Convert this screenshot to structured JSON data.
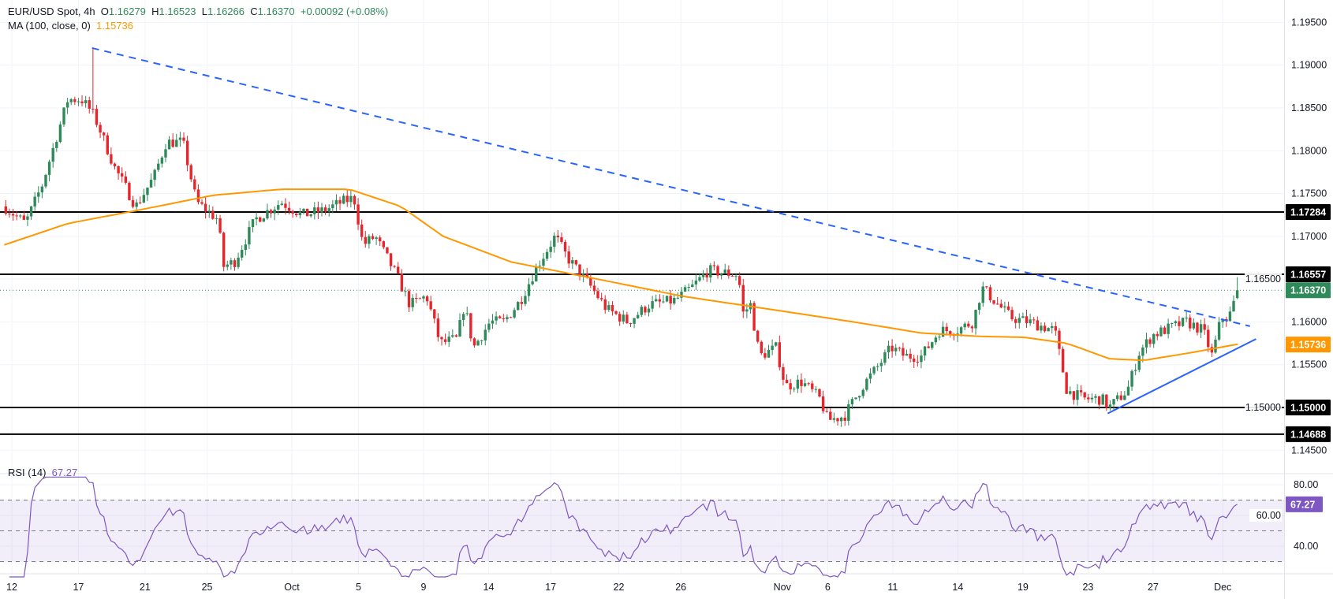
{
  "header": {
    "symbol": "EUR/USD Spot, 4h",
    "open_prefix": "O",
    "open": "1.16279",
    "high_prefix": "H",
    "high": "1.16523",
    "low_prefix": "L",
    "low": "1.16266",
    "close_prefix": "C",
    "close": "1.16370",
    "change": "+0.00092 (+0.08%)",
    "ma_label": "MA (100, close, 0)",
    "ma_value": "1.15736",
    "rsi_label": "RSI (14)",
    "rsi_value": "67.27"
  },
  "colors": {
    "up": "#2f8a5a",
    "down": "#e5262c",
    "ma": "#ff9800",
    "trend": "#2962ff",
    "rsi": "#7e57c2",
    "last": "#2f8a5a"
  },
  "chart_data": {
    "type": "candlestick",
    "title": "EUR/USD Spot, 4h",
    "x_unit": "days since Sep 12",
    "x_ticks": [
      {
        "t": 0,
        "label": "12"
      },
      {
        "t": 4.4,
        "label": "17"
      },
      {
        "t": 8.8,
        "label": "21"
      },
      {
        "t": 12.9,
        "label": "25"
      },
      {
        "t": 18.5,
        "label": "Oct"
      },
      {
        "t": 22.9,
        "label": "5"
      },
      {
        "t": 27.2,
        "label": "9"
      },
      {
        "t": 31.5,
        "label": "14"
      },
      {
        "t": 35.6,
        "label": "17"
      },
      {
        "t": 40.1,
        "label": "22"
      },
      {
        "t": 44.2,
        "label": "26"
      },
      {
        "t": 50.9,
        "label": "Nov"
      },
      {
        "t": 53.9,
        "label": "6"
      },
      {
        "t": 58.2,
        "label": "11"
      },
      {
        "t": 62.5,
        "label": "14"
      },
      {
        "t": 66.8,
        "label": "19"
      },
      {
        "t": 71.1,
        "label": "23"
      },
      {
        "t": 75.4,
        "label": "27"
      },
      {
        "t": 80,
        "label": "Dec"
      }
    ],
    "price_ticks": [
      "1.14500",
      "1.15000",
      "1.15500",
      "1.16000",
      "1.16500",
      "1.17000",
      "1.17500",
      "1.18000",
      "1.18500",
      "1.19000",
      "1.19500"
    ],
    "ylim": [
      1.145,
      1.195
    ],
    "price_path": [
      [
        -0.5,
        1.1735
      ],
      [
        0.9,
        1.1715
      ],
      [
        2.0,
        1.176
      ],
      [
        3.7,
        1.186
      ],
      [
        4.6,
        1.186
      ],
      [
        5.3,
        1.1845
      ],
      [
        5.7,
        1.183
      ],
      [
        6.8,
        1.178
      ],
      [
        8.2,
        1.1735
      ],
      [
        9.4,
        1.177
      ],
      [
        10.2,
        1.181
      ],
      [
        11.3,
        1.181
      ],
      [
        12.2,
        1.174
      ],
      [
        13.6,
        1.172
      ],
      [
        14.0,
        1.1665
      ],
      [
        14.7,
        1.167
      ],
      [
        16.1,
        1.172
      ],
      [
        17.8,
        1.174
      ],
      [
        19.2,
        1.1725
      ],
      [
        20.6,
        1.173
      ],
      [
        21.8,
        1.174
      ],
      [
        22.6,
        1.1745
      ],
      [
        23.2,
        1.169
      ],
      [
        24.0,
        1.17
      ],
      [
        25.4,
        1.1655
      ],
      [
        26.3,
        1.162
      ],
      [
        27.4,
        1.163
      ],
      [
        28.3,
        1.1575
      ],
      [
        29.4,
        1.158
      ],
      [
        29.9,
        1.162
      ],
      [
        30.5,
        1.157
      ],
      [
        31.6,
        1.16
      ],
      [
        32.5,
        1.16
      ],
      [
        33.6,
        1.1625
      ],
      [
        34.7,
        1.1665
      ],
      [
        35.9,
        1.17
      ],
      [
        36.7,
        1.1675
      ],
      [
        38.1,
        1.1645
      ],
      [
        39.3,
        1.1615
      ],
      [
        40.7,
        1.16
      ],
      [
        42.1,
        1.162
      ],
      [
        43.8,
        1.1625
      ],
      [
        44.9,
        1.164
      ],
      [
        46.0,
        1.166
      ],
      [
        48.0,
        1.1655
      ],
      [
        48.3,
        1.161
      ],
      [
        48.8,
        1.162
      ],
      [
        49.4,
        1.156
      ],
      [
        50.5,
        1.157
      ],
      [
        51.1,
        1.1525
      ],
      [
        52.2,
        1.153
      ],
      [
        53.4,
        1.151
      ],
      [
        53.9,
        1.1485
      ],
      [
        55.0,
        1.149
      ],
      [
        56.2,
        1.1525
      ],
      [
        57.3,
        1.155
      ],
      [
        58.1,
        1.157
      ],
      [
        59.0,
        1.156
      ],
      [
        60.1,
        1.156
      ],
      [
        61.3,
        1.159
      ],
      [
        62.4,
        1.159
      ],
      [
        63.5,
        1.16
      ],
      [
        64.1,
        1.164
      ],
      [
        64.9,
        1.1625
      ],
      [
        66.0,
        1.1605
      ],
      [
        67.2,
        1.16
      ],
      [
        68.9,
        1.159
      ],
      [
        69.7,
        1.152
      ],
      [
        70.8,
        1.151
      ],
      [
        72.0,
        1.151
      ],
      [
        72.5,
        1.15
      ],
      [
        73.7,
        1.152
      ],
      [
        74.5,
        1.1565
      ],
      [
        75.4,
        1.1585
      ],
      [
        76.8,
        1.1595
      ],
      [
        77.6,
        1.16
      ],
      [
        78.7,
        1.159
      ],
      [
        79.3,
        1.156
      ],
      [
        79.9,
        1.1605
      ],
      [
        80.4,
        1.1605
      ],
      [
        81.0,
        1.1637
      ]
    ],
    "ma_path": [
      [
        -0.5,
        1.169
      ],
      [
        3.7,
        1.1715
      ],
      [
        8.2,
        1.173
      ],
      [
        13.3,
        1.1748
      ],
      [
        17.8,
        1.1755
      ],
      [
        22.3,
        1.1755
      ],
      [
        25.7,
        1.1735
      ],
      [
        28.5,
        1.17
      ],
      [
        33.0,
        1.167
      ],
      [
        38.7,
        1.165
      ],
      [
        44.3,
        1.163
      ],
      [
        50.0,
        1.1615
      ],
      [
        55.6,
        1.16
      ],
      [
        60.1,
        1.1587
      ],
      [
        64.1,
        1.1583
      ],
      [
        66.9,
        1.1582
      ],
      [
        69.7,
        1.1575
      ],
      [
        72.5,
        1.1557
      ],
      [
        74.8,
        1.1555
      ],
      [
        78.2,
        1.1565
      ],
      [
        81.0,
        1.1574
      ]
    ],
    "spike_high": [
      5.3,
      1.192
    ],
    "horizontal_levels": [
      "1.17284",
      "1.16557",
      "1.15000",
      "1.14688"
    ],
    "last_price": "1.16370",
    "ma_last": "1.15736",
    "downtrend_line": [
      [
        5.3,
        1.192
      ],
      [
        81.8,
        1.1595
      ]
    ],
    "uptrend_line": [
      [
        72.4,
        1.1493
      ],
      [
        82.2,
        1.158
      ]
    ],
    "rsi": {
      "ticks": [
        "80.00",
        "60.00",
        "40.00"
      ],
      "levels": [
        70,
        50,
        30
      ],
      "ylim": [
        25,
        85
      ],
      "last": "67.27"
    }
  }
}
